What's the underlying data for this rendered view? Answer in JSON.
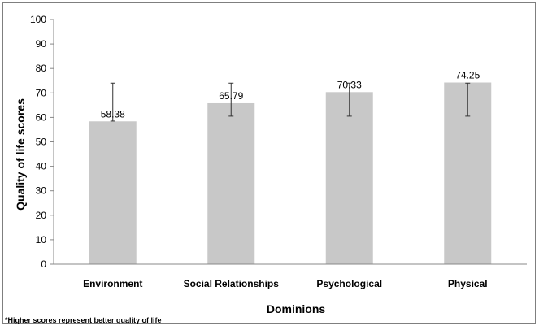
{
  "chart_data": {
    "type": "bar",
    "categories": [
      "Environment",
      "Social Relationships",
      "Psychological",
      "Physical"
    ],
    "values": [
      58.38,
      65.79,
      70.33,
      74.25
    ],
    "value_labels": [
      "58.38",
      "65.79",
      "70.33",
      "74.25"
    ],
    "error_low": [
      58.5,
      60.5,
      60.5,
      60.5
    ],
    "error_high": [
      74.0,
      74.0,
      74.0,
      74.0
    ],
    "xlabel": "Dominions",
    "ylabel": "Quality of life scores",
    "ylim": [
      0,
      100
    ],
    "yticks": [
      "0",
      "10",
      "20",
      "30",
      "40",
      "50",
      "60",
      "70",
      "80",
      "90",
      "100"
    ],
    "bar_color": "#c8c8c8",
    "grid": false,
    "legend": "none",
    "footnote": "*Higher scores represent better quality of life"
  }
}
